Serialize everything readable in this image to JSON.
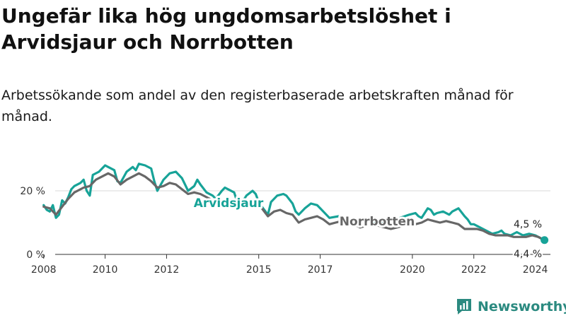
{
  "chart_data": {
    "type": "line",
    "title": "Ungefär lika hög ungdomsarbetslöshet i Arvidsjaur och Norrbotten",
    "subtitle": "Arbetssökande som andel av den registerbaserade arbetskraften månad för månad.",
    "x_ticks": [
      "2008",
      "2010",
      "2012",
      "2015",
      "2017",
      "2020",
      "2022",
      "2024"
    ],
    "y_ticks": [
      "0 %",
      "20 %"
    ],
    "ylim": [
      0,
      30
    ],
    "xlim": [
      2007.5,
      2025.0
    ],
    "grid": "horizontal",
    "series": [
      {
        "name": "Arvidsjaur",
        "color": "#17a398",
        "end_label": "4,5 %",
        "points": [
          [
            2008.0,
            15.5
          ],
          [
            2008.1,
            14.0
          ],
          [
            2008.2,
            13.5
          ],
          [
            2008.3,
            15.5
          ],
          [
            2008.4,
            11.5
          ],
          [
            2008.5,
            12.5
          ],
          [
            2008.6,
            17.0
          ],
          [
            2008.7,
            16.0
          ],
          [
            2008.8,
            18.0
          ],
          [
            2008.9,
            20.5
          ],
          [
            2009.0,
            21.5
          ],
          [
            2009.2,
            22.5
          ],
          [
            2009.3,
            23.5
          ],
          [
            2009.4,
            20.0
          ],
          [
            2009.5,
            18.5
          ],
          [
            2009.6,
            25.0
          ],
          [
            2009.8,
            26.0
          ],
          [
            2010.0,
            28.0
          ],
          [
            2010.1,
            27.5
          ],
          [
            2010.3,
            26.5
          ],
          [
            2010.4,
            23.0
          ],
          [
            2010.5,
            22.5
          ],
          [
            2010.7,
            26.0
          ],
          [
            2010.9,
            27.5
          ],
          [
            2011.0,
            26.5
          ],
          [
            2011.1,
            28.5
          ],
          [
            2011.3,
            28.0
          ],
          [
            2011.5,
            27.0
          ],
          [
            2011.6,
            23.0
          ],
          [
            2011.7,
            20.0
          ],
          [
            2011.9,
            23.5
          ],
          [
            2012.1,
            25.5
          ],
          [
            2012.3,
            26.0
          ],
          [
            2012.5,
            24.0
          ],
          [
            2012.6,
            22.0
          ],
          [
            2012.7,
            20.0
          ],
          [
            2012.9,
            21.5
          ],
          [
            2013.0,
            23.5
          ],
          [
            2013.1,
            22.0
          ],
          [
            2013.3,
            19.5
          ],
          [
            2013.5,
            18.5
          ],
          [
            2013.6,
            17.5
          ],
          [
            2013.8,
            20.0
          ],
          [
            2013.9,
            21.0
          ],
          [
            2014.0,
            20.5
          ],
          [
            2014.2,
            19.5
          ],
          [
            2014.3,
            16.5
          ],
          [
            2014.4,
            15.5
          ],
          [
            2014.6,
            18.5
          ],
          [
            2014.8,
            20.0
          ],
          [
            2014.9,
            19.0
          ],
          [
            2015.0,
            16.5
          ],
          [
            2015.1,
            15.0
          ],
          [
            2015.3,
            12.5
          ],
          [
            2015.4,
            16.5
          ],
          [
            2015.6,
            18.5
          ],
          [
            2015.8,
            19.0
          ],
          [
            2015.9,
            18.5
          ],
          [
            2016.1,
            16.0
          ],
          [
            2016.2,
            13.5
          ],
          [
            2016.3,
            12.5
          ],
          [
            2016.5,
            14.5
          ],
          [
            2016.7,
            16.0
          ],
          [
            2016.9,
            15.5
          ],
          [
            2017.0,
            14.5
          ],
          [
            2017.2,
            12.5
          ],
          [
            2017.3,
            11.5
          ],
          [
            2017.6,
            12.0
          ],
          [
            2017.8,
            11.5
          ],
          [
            2018.2,
            10.5
          ],
          [
            2018.5,
            9.5
          ],
          [
            2018.8,
            10.0
          ],
          [
            2019.0,
            10.5
          ],
          [
            2019.3,
            10.0
          ],
          [
            2019.6,
            11.5
          ],
          [
            2019.9,
            12.5
          ],
          [
            2020.1,
            13.0
          ],
          [
            2020.2,
            12.0
          ],
          [
            2020.3,
            11.5
          ],
          [
            2020.5,
            14.5
          ],
          [
            2020.6,
            14.0
          ],
          [
            2020.7,
            12.5
          ],
          [
            2020.8,
            13.0
          ],
          [
            2021.0,
            13.5
          ],
          [
            2021.2,
            12.5
          ],
          [
            2021.3,
            13.5
          ],
          [
            2021.5,
            14.5
          ],
          [
            2021.7,
            12.0
          ],
          [
            2021.8,
            11.0
          ],
          [
            2021.9,
            9.5
          ],
          [
            2022.0,
            9.5
          ],
          [
            2022.2,
            8.5
          ],
          [
            2022.4,
            7.5
          ],
          [
            2022.6,
            6.5
          ],
          [
            2022.8,
            7.0
          ],
          [
            2022.9,
            7.5
          ],
          [
            2023.0,
            6.5
          ],
          [
            2023.2,
            6.0
          ],
          [
            2023.4,
            7.0
          ],
          [
            2023.6,
            6.0
          ],
          [
            2023.8,
            6.5
          ],
          [
            2024.0,
            6.0
          ],
          [
            2024.1,
            5.5
          ],
          [
            2024.2,
            5.0
          ],
          [
            2024.3,
            4.5
          ]
        ]
      },
      {
        "name": "Norrbotten",
        "color": "#676767",
        "end_label": "4,4 %",
        "points": [
          [
            2008.0,
            15.0
          ],
          [
            2008.2,
            14.5
          ],
          [
            2008.4,
            12.5
          ],
          [
            2008.6,
            15.0
          ],
          [
            2008.8,
            17.5
          ],
          [
            2009.0,
            19.5
          ],
          [
            2009.3,
            21.0
          ],
          [
            2009.5,
            21.5
          ],
          [
            2009.7,
            23.5
          ],
          [
            2009.9,
            24.5
          ],
          [
            2010.1,
            25.5
          ],
          [
            2010.3,
            24.5
          ],
          [
            2010.5,
            22.0
          ],
          [
            2010.7,
            23.5
          ],
          [
            2010.9,
            24.5
          ],
          [
            2011.1,
            25.5
          ],
          [
            2011.3,
            24.5
          ],
          [
            2011.5,
            23.0
          ],
          [
            2011.7,
            21.0
          ],
          [
            2011.9,
            21.5
          ],
          [
            2012.1,
            22.5
          ],
          [
            2012.3,
            22.0
          ],
          [
            2012.5,
            20.5
          ],
          [
            2012.7,
            19.0
          ],
          [
            2012.9,
            19.5
          ],
          [
            2013.1,
            19.0
          ],
          [
            2013.3,
            18.0
          ],
          [
            2013.5,
            17.0
          ],
          [
            2013.7,
            16.5
          ],
          [
            2013.9,
            17.0
          ],
          [
            2014.1,
            16.5
          ],
          [
            2014.3,
            15.5
          ],
          [
            2014.5,
            15.0
          ],
          [
            2014.7,
            16.0
          ],
          [
            2014.9,
            15.5
          ],
          [
            2015.1,
            14.5
          ],
          [
            2015.3,
            12.0
          ],
          [
            2015.5,
            13.5
          ],
          [
            2015.7,
            14.0
          ],
          [
            2015.9,
            13.0
          ],
          [
            2016.1,
            12.5
          ],
          [
            2016.3,
            10.0
          ],
          [
            2016.5,
            11.0
          ],
          [
            2016.7,
            11.5
          ],
          [
            2016.9,
            12.0
          ],
          [
            2017.1,
            11.0
          ],
          [
            2017.3,
            9.5
          ],
          [
            2017.5,
            10.0
          ],
          [
            2017.7,
            10.5
          ],
          [
            2017.9,
            10.0
          ],
          [
            2018.1,
            9.5
          ],
          [
            2018.3,
            8.5
          ],
          [
            2018.5,
            9.0
          ],
          [
            2018.7,
            9.5
          ],
          [
            2018.9,
            9.0
          ],
          [
            2019.1,
            8.5
          ],
          [
            2019.3,
            8.0
          ],
          [
            2019.5,
            8.5
          ],
          [
            2019.7,
            9.0
          ],
          [
            2019.9,
            9.5
          ],
          [
            2020.1,
            9.5
          ],
          [
            2020.3,
            10.0
          ],
          [
            2020.5,
            11.0
          ],
          [
            2020.7,
            10.5
          ],
          [
            2020.9,
            10.0
          ],
          [
            2021.1,
            10.5
          ],
          [
            2021.3,
            10.0
          ],
          [
            2021.5,
            9.5
          ],
          [
            2021.7,
            8.0
          ],
          [
            2021.9,
            8.0
          ],
          [
            2022.1,
            8.0
          ],
          [
            2022.3,
            7.5
          ],
          [
            2022.5,
            6.5
          ],
          [
            2022.7,
            6.0
          ],
          [
            2022.9,
            6.0
          ],
          [
            2023.1,
            6.0
          ],
          [
            2023.3,
            5.5
          ],
          [
            2023.5,
            5.5
          ],
          [
            2023.7,
            5.5
          ],
          [
            2023.9,
            6.0
          ],
          [
            2024.1,
            5.5
          ],
          [
            2024.3,
            4.4
          ]
        ]
      }
    ]
  },
  "brand": "Newsworthy",
  "colors": {
    "accent": "#17a398",
    "regional": "#676767",
    "grid": "#d9d9d9"
  }
}
